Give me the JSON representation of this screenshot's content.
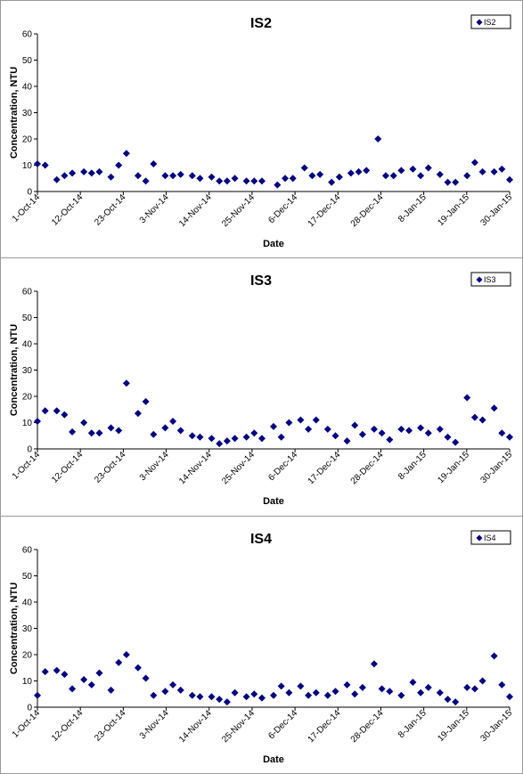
{
  "chart_data": [
    {
      "type": "scatter",
      "title": "IS2",
      "xlabel": "Date",
      "ylabel": "Concentration, NTU",
      "ylim": [
        0,
        60
      ],
      "yticks": [
        0,
        10,
        20,
        30,
        40,
        50,
        60
      ],
      "xlim": [
        "2014-10-01",
        "2015-01-31"
      ],
      "xtick_labels": [
        "1-Oct-14",
        "12-Oct-14",
        "23-Oct-14",
        "3-Nov-14",
        "14-Nov-14",
        "25-Nov-14",
        "6-Dec-14",
        "17-Dec-14",
        "28-Dec-14",
        "8-Jan-15",
        "19-Jan-15",
        "30-Jan-15"
      ],
      "legend_position": "top-right",
      "grid": false,
      "marker": "diamond",
      "color": "#000080",
      "series": [
        {
          "name": "IS2",
          "points": [
            [
              "2014-10-01",
              10.5
            ],
            [
              "2014-10-03",
              10
            ],
            [
              "2014-10-06",
              4.5
            ],
            [
              "2014-10-08",
              6
            ],
            [
              "2014-10-10",
              7
            ],
            [
              "2014-10-13",
              7.5
            ],
            [
              "2014-10-15",
              7
            ],
            [
              "2014-10-17",
              7.5
            ],
            [
              "2014-10-20",
              5.5
            ],
            [
              "2014-10-22",
              10
            ],
            [
              "2014-10-24",
              14.5
            ],
            [
              "2014-10-27",
              6
            ],
            [
              "2014-10-29",
              4
            ],
            [
              "2014-10-31",
              10.5
            ],
            [
              "2014-11-03",
              6
            ],
            [
              "2014-11-05",
              6
            ],
            [
              "2014-11-07",
              6.5
            ],
            [
              "2014-11-10",
              6
            ],
            [
              "2014-11-12",
              5
            ],
            [
              "2014-11-15",
              5.5
            ],
            [
              "2014-11-17",
              4
            ],
            [
              "2014-11-19",
              4
            ],
            [
              "2014-11-21",
              5
            ],
            [
              "2014-11-24",
              4
            ],
            [
              "2014-11-26",
              4
            ],
            [
              "2014-11-28",
              4
            ],
            [
              "2014-12-02",
              2.5
            ],
            [
              "2014-12-04",
              5
            ],
            [
              "2014-12-06",
              5
            ],
            [
              "2014-12-09",
              9
            ],
            [
              "2014-12-11",
              6
            ],
            [
              "2014-12-13",
              6.5
            ],
            [
              "2014-12-16",
              3.5
            ],
            [
              "2014-12-18",
              5.5
            ],
            [
              "2014-12-21",
              7
            ],
            [
              "2014-12-23",
              7.5
            ],
            [
              "2014-12-25",
              8
            ],
            [
              "2014-12-28",
              20
            ],
            [
              "2014-12-30",
              6
            ],
            [
              "2015-01-01",
              6
            ],
            [
              "2015-01-03",
              8
            ],
            [
              "2015-01-06",
              8.5
            ],
            [
              "2015-01-08",
              6
            ],
            [
              "2015-01-10",
              9
            ],
            [
              "2015-01-13",
              6.5
            ],
            [
              "2015-01-15",
              3.5
            ],
            [
              "2015-01-17",
              3.5
            ],
            [
              "2015-01-20",
              6
            ],
            [
              "2015-01-22",
              11
            ],
            [
              "2015-01-24",
              7.5
            ],
            [
              "2015-01-27",
              7.5
            ],
            [
              "2015-01-29",
              8.5
            ],
            [
              "2015-01-31",
              4.5
            ]
          ]
        }
      ]
    },
    {
      "type": "scatter",
      "title": "IS3",
      "xlabel": "Date",
      "ylabel": "Concentration, NTU",
      "ylim": [
        0,
        60
      ],
      "yticks": [
        0,
        10,
        20,
        30,
        40,
        50,
        60
      ],
      "xlim": [
        "2014-10-01",
        "2015-01-31"
      ],
      "xtick_labels": [
        "1-Oct-14",
        "12-Oct-14",
        "23-Oct-14",
        "3-Nov-14",
        "14-Nov-14",
        "25-Nov-14",
        "6-Dec-14",
        "17-Dec-14",
        "28-Dec-14",
        "8-Jan-15",
        "19-Jan-15",
        "30-Jan-15"
      ],
      "legend_position": "top-right",
      "grid": false,
      "marker": "diamond",
      "color": "#000080",
      "series": [
        {
          "name": "IS3",
          "points": [
            [
              "2014-10-01",
              10.5
            ],
            [
              "2014-10-03",
              14.5
            ],
            [
              "2014-10-06",
              14.5
            ],
            [
              "2014-10-08",
              13
            ],
            [
              "2014-10-10",
              6.5
            ],
            [
              "2014-10-13",
              10
            ],
            [
              "2014-10-15",
              6
            ],
            [
              "2014-10-17",
              6
            ],
            [
              "2014-10-20",
              8
            ],
            [
              "2014-10-22",
              7
            ],
            [
              "2014-10-24",
              25
            ],
            [
              "2014-10-27",
              13.5
            ],
            [
              "2014-10-29",
              18
            ],
            [
              "2014-10-31",
              5.5
            ],
            [
              "2014-11-03",
              8
            ],
            [
              "2014-11-05",
              10.5
            ],
            [
              "2014-11-07",
              7
            ],
            [
              "2014-11-10",
              5
            ],
            [
              "2014-11-12",
              4.5
            ],
            [
              "2014-11-15",
              4
            ],
            [
              "2014-11-17",
              2
            ],
            [
              "2014-11-19",
              3
            ],
            [
              "2014-11-21",
              4
            ],
            [
              "2014-11-24",
              4.5
            ],
            [
              "2014-11-26",
              6
            ],
            [
              "2014-11-28",
              4
            ],
            [
              "2014-12-01",
              8.5
            ],
            [
              "2014-12-03",
              4.5
            ],
            [
              "2014-12-05",
              10
            ],
            [
              "2014-12-08",
              11
            ],
            [
              "2014-12-10",
              7.5
            ],
            [
              "2014-12-12",
              11
            ],
            [
              "2014-12-15",
              7.5
            ],
            [
              "2014-12-17",
              5
            ],
            [
              "2014-12-20",
              3
            ],
            [
              "2014-12-22",
              9
            ],
            [
              "2014-12-24",
              5.5
            ],
            [
              "2014-12-27",
              7.5
            ],
            [
              "2014-12-29",
              6
            ],
            [
              "2014-12-31",
              3.5
            ],
            [
              "2015-01-03",
              7.5
            ],
            [
              "2015-01-05",
              7
            ],
            [
              "2015-01-08",
              8
            ],
            [
              "2015-01-10",
              6
            ],
            [
              "2015-01-13",
              7.5
            ],
            [
              "2015-01-15",
              4.5
            ],
            [
              "2015-01-17",
              2.5
            ],
            [
              "2015-01-20",
              19.5
            ],
            [
              "2015-01-22",
              12
            ],
            [
              "2015-01-24",
              11
            ],
            [
              "2015-01-27",
              15.5
            ],
            [
              "2015-01-29",
              6
            ],
            [
              "2015-01-31",
              4.5
            ]
          ]
        }
      ]
    },
    {
      "type": "scatter",
      "title": "IS4",
      "xlabel": "Date",
      "ylabel": "Concentration, NTU",
      "ylim": [
        0,
        60
      ],
      "yticks": [
        0,
        10,
        20,
        30,
        40,
        50,
        60
      ],
      "xlim": [
        "2014-10-01",
        "2015-01-31"
      ],
      "xtick_labels": [
        "1-Oct-14",
        "12-Oct-14",
        "23-Oct-14",
        "3-Nov-14",
        "14-Nov-14",
        "25-Nov-14",
        "6-Dec-14",
        "17-Dec-14",
        "28-Dec-14",
        "8-Jan-15",
        "19-Jan-15",
        "30-Jan-15"
      ],
      "legend_position": "top-right",
      "grid": false,
      "marker": "diamond",
      "color": "#000080",
      "series": [
        {
          "name": "IS4",
          "points": [
            [
              "2014-10-01",
              4.5
            ],
            [
              "2014-10-03",
              13.5
            ],
            [
              "2014-10-06",
              14
            ],
            [
              "2014-10-08",
              12.5
            ],
            [
              "2014-10-10",
              7
            ],
            [
              "2014-10-13",
              10.5
            ],
            [
              "2014-10-15",
              8.5
            ],
            [
              "2014-10-17",
              13
            ],
            [
              "2014-10-20",
              6.5
            ],
            [
              "2014-10-22",
              17
            ],
            [
              "2014-10-24",
              20
            ],
            [
              "2014-10-27",
              15
            ],
            [
              "2014-10-29",
              11
            ],
            [
              "2014-10-31",
              4.5
            ],
            [
              "2014-11-03",
              6
            ],
            [
              "2014-11-05",
              8.5
            ],
            [
              "2014-11-07",
              6.5
            ],
            [
              "2014-11-10",
              4.5
            ],
            [
              "2014-11-12",
              4
            ],
            [
              "2014-11-15",
              4
            ],
            [
              "2014-11-17",
              3
            ],
            [
              "2014-11-19",
              2
            ],
            [
              "2014-11-21",
              5.5
            ],
            [
              "2014-11-24",
              4
            ],
            [
              "2014-11-26",
              5
            ],
            [
              "2014-11-28",
              3.5
            ],
            [
              "2014-12-01",
              4.5
            ],
            [
              "2014-12-03",
              8
            ],
            [
              "2014-12-05",
              5.5
            ],
            [
              "2014-12-08",
              8
            ],
            [
              "2014-12-10",
              4.5
            ],
            [
              "2014-12-12",
              5.5
            ],
            [
              "2014-12-15",
              4.5
            ],
            [
              "2014-12-17",
              6
            ],
            [
              "2014-12-20",
              8.5
            ],
            [
              "2014-12-22",
              5
            ],
            [
              "2014-12-24",
              7.5
            ],
            [
              "2014-12-27",
              16.5
            ],
            [
              "2014-12-29",
              7
            ],
            [
              "2014-12-31",
              6
            ],
            [
              "2015-01-03",
              4.5
            ],
            [
              "2015-01-06",
              9.5
            ],
            [
              "2015-01-08",
              5.5
            ],
            [
              "2015-01-10",
              7.5
            ],
            [
              "2015-01-13",
              5.5
            ],
            [
              "2015-01-15",
              3
            ],
            [
              "2015-01-17",
              2
            ],
            [
              "2015-01-20",
              7.5
            ],
            [
              "2015-01-22",
              7
            ],
            [
              "2015-01-24",
              10
            ],
            [
              "2015-01-27",
              19.5
            ],
            [
              "2015-01-29",
              8.5
            ],
            [
              "2015-01-31",
              4
            ]
          ]
        }
      ]
    }
  ]
}
